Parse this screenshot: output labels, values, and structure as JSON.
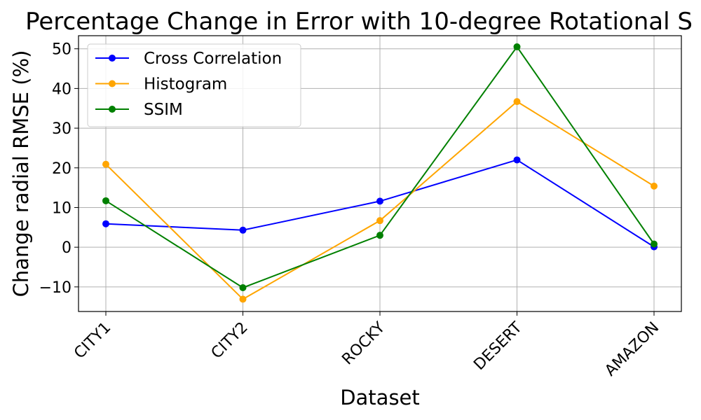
{
  "chart_data": {
    "type": "line",
    "title": "Percentage Change in Error with 10-degree Rotational S",
    "xlabel": "Dataset",
    "ylabel": "Change radial RMSE (%)",
    "categories": [
      "CITY1",
      "CITY2",
      "ROCKY",
      "DESERT",
      "AMAZON"
    ],
    "ylim": [
      -16.2,
      53.3
    ],
    "yticks": [
      -10,
      0,
      10,
      20,
      30,
      40,
      50
    ],
    "grid": true,
    "legend_position": "upper-left",
    "series": [
      {
        "name": "Cross Correlation",
        "color": "#0000ff",
        "values": [
          5.9,
          4.3,
          11.6,
          22.0,
          0.1
        ]
      },
      {
        "name": "Histogram",
        "color": "#ffa500",
        "values": [
          20.9,
          -13.1,
          6.7,
          36.7,
          15.4
        ]
      },
      {
        "name": "SSIM",
        "color": "#008000",
        "values": [
          11.7,
          -10.2,
          3.0,
          50.5,
          0.8
        ]
      }
    ]
  }
}
